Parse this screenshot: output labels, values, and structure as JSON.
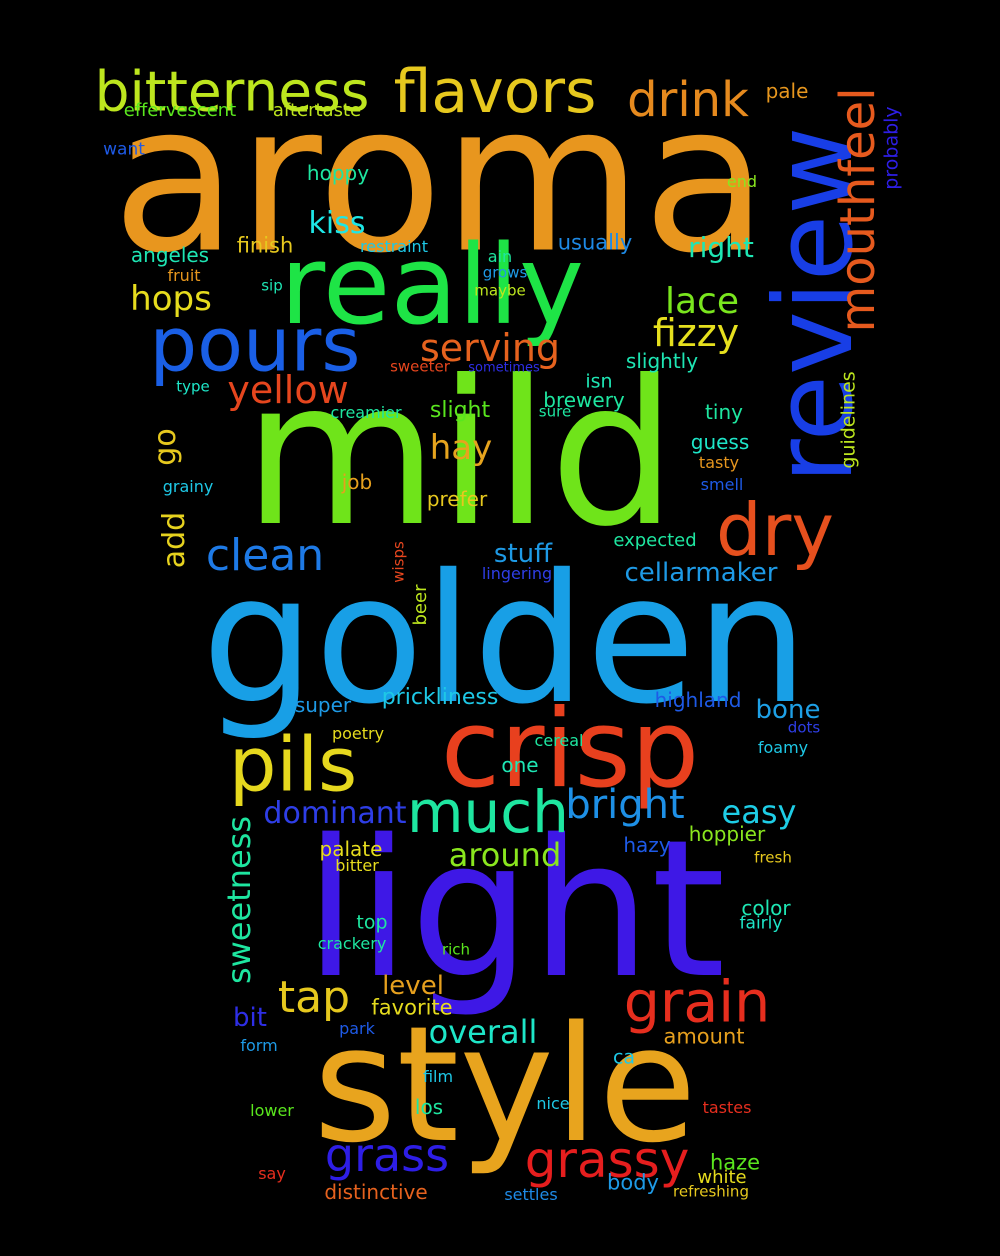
{
  "words": [
    {
      "text": "aroma",
      "color": "#e8961e",
      "vertical": false
    },
    {
      "text": "mild",
      "color": "#6fe41a",
      "vertical": false
    },
    {
      "text": "golden",
      "color": "#189fe6",
      "vertical": false
    },
    {
      "text": "light",
      "color": "#3e18e6",
      "vertical": false
    },
    {
      "text": "style",
      "color": "#e8a41e",
      "vertical": false
    },
    {
      "text": "really",
      "color": "#1ee446",
      "vertical": false
    },
    {
      "text": "crisp",
      "color": "#e8401e",
      "vertical": false
    },
    {
      "text": "review",
      "color": "#183ee6",
      "vertical": true
    },
    {
      "text": "pours",
      "color": "#1a5fe6",
      "vertical": false
    },
    {
      "text": "pils",
      "color": "#e6d81e",
      "vertical": false
    },
    {
      "text": "dry",
      "color": "#e6501e",
      "vertical": false
    },
    {
      "text": "flavors",
      "color": "#e6c81e",
      "vertical": false
    },
    {
      "text": "bitterness",
      "color": "#bde61e",
      "vertical": false
    },
    {
      "text": "much",
      "color": "#1ee6a0",
      "vertical": false
    },
    {
      "text": "grain",
      "color": "#e62e1e",
      "vertical": false
    },
    {
      "text": "mouthfeel",
      "color": "#e65a1e",
      "vertical": true
    },
    {
      "text": "drink",
      "color": "#e68a1e",
      "vertical": false
    },
    {
      "text": "grassy",
      "color": "#e61e1e",
      "vertical": false
    },
    {
      "text": "grass",
      "color": "#2e1ee6",
      "vertical": false
    },
    {
      "text": "clean",
      "color": "#1e7ae6",
      "vertical": false
    },
    {
      "text": "bright",
      "color": "#1e90e6",
      "vertical": false
    },
    {
      "text": "tap",
      "color": "#e6c81e",
      "vertical": false
    },
    {
      "text": "fizzy",
      "color": "#e6e01e",
      "vertical": false
    },
    {
      "text": "serving",
      "color": "#e6621e",
      "vertical": false
    },
    {
      "text": "yellow",
      "color": "#e6461e",
      "vertical": false
    },
    {
      "text": "lace",
      "color": "#7ae61e",
      "vertical": false
    },
    {
      "text": "hops",
      "color": "#e6dc1e",
      "vertical": false
    },
    {
      "text": "sweetness",
      "color": "#1ee6a0",
      "vertical": true
    },
    {
      "text": "overall",
      "color": "#1ee6c8",
      "vertical": false
    },
    {
      "text": "around",
      "color": "#8ae61e",
      "vertical": false
    },
    {
      "text": "dominant",
      "color": "#2e3ee6",
      "vertical": false
    },
    {
      "text": "easy",
      "color": "#1ecde6",
      "vertical": false
    },
    {
      "text": "hay",
      "color": "#e6a41e",
      "vertical": false
    },
    {
      "text": "kiss",
      "color": "#1ee6e6",
      "vertical": false
    },
    {
      "text": "add",
      "color": "#e6d21e",
      "vertical": true
    },
    {
      "text": "go",
      "color": "#e6c81e",
      "vertical": true
    },
    {
      "text": "right",
      "color": "#1ee6b4",
      "vertical": false
    },
    {
      "text": "stuff",
      "color": "#1e9ae6",
      "vertical": false
    },
    {
      "text": "cellarmaker",
      "color": "#1e9ae6",
      "vertical": false
    },
    {
      "text": "bone",
      "color": "#1ea0e6",
      "vertical": false
    },
    {
      "text": "level",
      "color": "#e6a01e",
      "vertical": false
    },
    {
      "text": "bit",
      "color": "#2e2ee6",
      "vertical": false
    },
    {
      "text": "effervescent",
      "color": "#5ae61e",
      "vertical": false
    },
    {
      "text": "aftertaste",
      "color": "#bde61e",
      "vertical": false
    },
    {
      "text": "pale",
      "color": "#e6961e",
      "vertical": false
    },
    {
      "text": "want",
      "color": "#1e5ae6",
      "vertical": false
    },
    {
      "text": "hoppy",
      "color": "#1ee6a0",
      "vertical": false
    },
    {
      "text": "end",
      "color": "#8ae61e",
      "vertical": false
    },
    {
      "text": "probably",
      "color": "#2e1ee6",
      "vertical": true
    },
    {
      "text": "angeles",
      "color": "#1ee6b4",
      "vertical": false
    },
    {
      "text": "finish",
      "color": "#e6c81e",
      "vertical": false
    },
    {
      "text": "restraint",
      "color": "#1ec8e6",
      "vertical": false
    },
    {
      "text": "usually",
      "color": "#1e8ae6",
      "vertical": false
    },
    {
      "text": "fruit",
      "color": "#e6961e",
      "vertical": false
    },
    {
      "text": "ain",
      "color": "#1ee6a0",
      "vertical": false
    },
    {
      "text": "grows",
      "color": "#1e9ae6",
      "vertical": false
    },
    {
      "text": "sip",
      "color": "#1ee6b4",
      "vertical": false
    },
    {
      "text": "maybe",
      "color": "#bde61e",
      "vertical": false
    },
    {
      "text": "slightly",
      "color": "#1ee6b4",
      "vertical": false
    },
    {
      "text": "sweeter",
      "color": "#e6461e",
      "vertical": false
    },
    {
      "text": "sometimes",
      "color": "#2e2ee6",
      "vertical": false
    },
    {
      "text": "type",
      "color": "#1ee6c8",
      "vertical": false
    },
    {
      "text": "isn",
      "color": "#1ee6b4",
      "vertical": false
    },
    {
      "text": "brewery",
      "color": "#1ee6a0",
      "vertical": false
    },
    {
      "text": "creamier",
      "color": "#1ee6a0",
      "vertical": false
    },
    {
      "text": "slight",
      "color": "#5ae61e",
      "vertical": false
    },
    {
      "text": "sure",
      "color": "#1ee6a0",
      "vertical": false
    },
    {
      "text": "tiny",
      "color": "#1ee6a0",
      "vertical": false
    },
    {
      "text": "guess",
      "color": "#1ee6c8",
      "vertical": false
    },
    {
      "text": "guidelines",
      "color": "#bde61e",
      "vertical": true
    },
    {
      "text": "tasty",
      "color": "#e6961e",
      "vertical": false
    },
    {
      "text": "smell",
      "color": "#1e5ae6",
      "vertical": false
    },
    {
      "text": "grainy",
      "color": "#1ec8e6",
      "vertical": false
    },
    {
      "text": "job",
      "color": "#e6a01e",
      "vertical": false
    },
    {
      "text": "prefer",
      "color": "#e6c81e",
      "vertical": false
    },
    {
      "text": "expected",
      "color": "#1ee6a0",
      "vertical": false
    },
    {
      "text": "wisps",
      "color": "#e6461e",
      "vertical": true
    },
    {
      "text": "lingering",
      "color": "#2e3ee6",
      "vertical": false
    },
    {
      "text": "beer",
      "color": "#bde61e",
      "vertical": true
    },
    {
      "text": "prickliness",
      "color": "#1ec8e6",
      "vertical": false
    },
    {
      "text": "super",
      "color": "#1e9ae6",
      "vertical": false
    },
    {
      "text": "highland",
      "color": "#1e5ae6",
      "vertical": false
    },
    {
      "text": "dots",
      "color": "#2e3ee6",
      "vertical": false
    },
    {
      "text": "poetry",
      "color": "#e6dc1e",
      "vertical": false
    },
    {
      "text": "cereal",
      "color": "#1ee6a0",
      "vertical": false
    },
    {
      "text": "one",
      "color": "#1ee6b4",
      "vertical": false
    },
    {
      "text": "foamy",
      "color": "#1ec8e6",
      "vertical": false
    },
    {
      "text": "hoppier",
      "color": "#8ae61e",
      "vertical": false
    },
    {
      "text": "hazy",
      "color": "#1e5ae6",
      "vertical": false
    },
    {
      "text": "palate",
      "color": "#e6dc1e",
      "vertical": false
    },
    {
      "text": "bitter",
      "color": "#e6dc1e",
      "vertical": false
    },
    {
      "text": "fresh",
      "color": "#e6c81e",
      "vertical": false
    },
    {
      "text": "top",
      "color": "#1ee6a0",
      "vertical": false
    },
    {
      "text": "crackery",
      "color": "#1ee6a0",
      "vertical": false
    },
    {
      "text": "rich",
      "color": "#5ae61e",
      "vertical": false
    },
    {
      "text": "color",
      "color": "#1ee6b4",
      "vertical": false
    },
    {
      "text": "fairly",
      "color": "#1ee6c8",
      "vertical": false
    },
    {
      "text": "favorite",
      "color": "#e6dc1e",
      "vertical": false
    },
    {
      "text": "amount",
      "color": "#e6a01e",
      "vertical": false
    },
    {
      "text": "park",
      "color": "#1e5ae6",
      "vertical": false
    },
    {
      "text": "form",
      "color": "#1e9ae6",
      "vertical": false
    },
    {
      "text": "ca",
      "color": "#1ec8e6",
      "vertical": false
    },
    {
      "text": "film",
      "color": "#1ec8e6",
      "vertical": false
    },
    {
      "text": "lower",
      "color": "#5ae61e",
      "vertical": false
    },
    {
      "text": "los",
      "color": "#1ee6a0",
      "vertical": false
    },
    {
      "text": "nice",
      "color": "#1ec8e6",
      "vertical": false
    },
    {
      "text": "tastes",
      "color": "#e62e1e",
      "vertical": false
    },
    {
      "text": "haze",
      "color": "#5ae61e",
      "vertical": false
    },
    {
      "text": "say",
      "color": "#e62e1e",
      "vertical": false
    },
    {
      "text": "body",
      "color": "#1e9ae6",
      "vertical": false
    },
    {
      "text": "white",
      "color": "#e6dc1e",
      "vertical": false
    },
    {
      "text": "distinctive",
      "color": "#e6621e",
      "vertical": false
    },
    {
      "text": "settles",
      "color": "#1e8ae6",
      "vertical": false
    },
    {
      "text": "refreshing",
      "color": "#e6c81e",
      "vertical": false
    }
  ]
}
